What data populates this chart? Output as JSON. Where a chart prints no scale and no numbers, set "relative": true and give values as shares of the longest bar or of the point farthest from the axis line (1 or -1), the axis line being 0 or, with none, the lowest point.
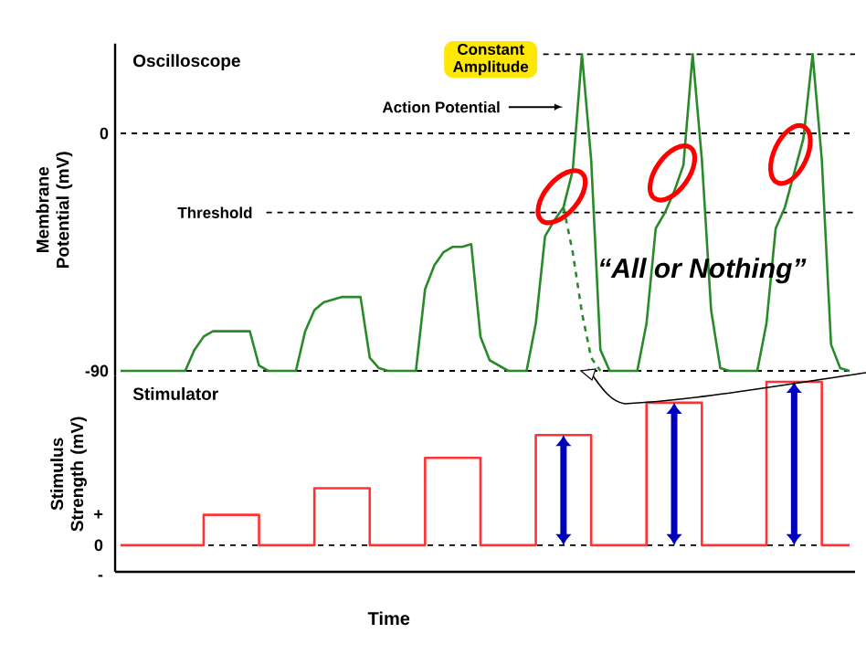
{
  "chart_data": [
    {
      "type": "line",
      "title": "Oscilloscope",
      "ylabel": "Membrane Potential (mV)",
      "ylim": [
        -92,
        34
      ],
      "yticks": [
        0,
        -90
      ],
      "tick_labels": "y",
      "categories": [
        null,
        null,
        null,
        null,
        null,
        null,
        null,
        null,
        null,
        null,
        null,
        null,
        null,
        null,
        null,
        null,
        null,
        null,
        null,
        null,
        null,
        null,
        null,
        null,
        null,
        null,
        null,
        null,
        null,
        null,
        null,
        null,
        null,
        null,
        null,
        null,
        null,
        null,
        null,
        null,
        null,
        null,
        null,
        null,
        null,
        null,
        null,
        null,
        null,
        null,
        null,
        null,
        null,
        null,
        null,
        null,
        null,
        null,
        null,
        null,
        null,
        null,
        null,
        null,
        null,
        null,
        null,
        null,
        null,
        null,
        null,
        null,
        null,
        null,
        null,
        null,
        null,
        null,
        null,
        null
      ],
      "series": [
        {
          "color": "#2a8a2a",
          "values": [
            -90,
            -90,
            -90,
            -90,
            -90,
            -90,
            -90,
            -90,
            -82,
            -77,
            -75,
            -75,
            -75,
            -75,
            -75,
            -88,
            -90,
            -90,
            -90,
            -90,
            -75,
            -67,
            -64,
            -63,
            -62,
            -62,
            -62,
            -85,
            -89,
            -90,
            -90,
            -90,
            -90,
            -59,
            -50,
            -45,
            -43,
            -43,
            -42,
            -77,
            -86,
            -88,
            -90,
            -90,
            -90,
            -72,
            -39,
            -33,
            -28,
            -14,
            30,
            -10,
            -82,
            -90,
            -90,
            -90,
            -90,
            -72,
            -36,
            -30,
            -22,
            -12,
            30,
            -10,
            -67,
            -89,
            -90,
            -90,
            -90,
            -90,
            -72,
            -36,
            -28,
            -15,
            -2,
            30,
            -10,
            -80,
            -89,
            -90
          ]
        },
        {
          "color": "#2a8a2a",
          "line_style": "dashed",
          "values": [
            null,
            null,
            null,
            null,
            null,
            null,
            null,
            null,
            null,
            null,
            null,
            null,
            null,
            null,
            null,
            null,
            null,
            null,
            null,
            null,
            null,
            null,
            null,
            null,
            null,
            null,
            null,
            null,
            null,
            null,
            null,
            null,
            null,
            null,
            null,
            null,
            null,
            null,
            null,
            null,
            null,
            null,
            null,
            null,
            null,
            null,
            null,
            null,
            -28,
            -45,
            -68,
            -85,
            -90,
            null,
            null,
            null,
            null,
            null,
            null,
            null,
            null,
            null,
            null,
            null,
            null,
            null,
            null,
            null,
            null,
            null,
            null,
            null,
            null,
            null,
            null,
            null,
            null,
            null,
            null,
            null
          ]
        }
      ],
      "ref_lines": [
        {
          "axis": "y",
          "value": 30,
          "label": "Constant Amplitude"
        },
        {
          "axis": "y",
          "value": 0
        },
        {
          "axis": "y",
          "value": -30,
          "label": "Threshold"
        },
        {
          "axis": "y",
          "value": -90
        }
      ],
      "annotations": [
        "Action Potential",
        "“All or Nothing”"
      ]
    },
    {
      "type": "step",
      "title": "Stimulator",
      "xlabel": "Time",
      "ylabel": "Stimulus Strength (mV)",
      "relative": true,
      "annotations": [
        "+",
        "0",
        "-"
      ],
      "categories": [
        null,
        null,
        null,
        null,
        null,
        null,
        null,
        null,
        null,
        null,
        null,
        null,
        null,
        null,
        null,
        null,
        null,
        null,
        null,
        null,
        null,
        null,
        null,
        null,
        null,
        null,
        null,
        null,
        null,
        null,
        null,
        null,
        null,
        null,
        null,
        null,
        null,
        null,
        null,
        null,
        null,
        null,
        null,
        null,
        null,
        null,
        null,
        null,
        null,
        null,
        null,
        null,
        null,
        null,
        null,
        null,
        null,
        null,
        null,
        null,
        null,
        null,
        null,
        null,
        null,
        null,
        null,
        null,
        null,
        null,
        null,
        null,
        null,
        null,
        null,
        null,
        null,
        null,
        null,
        null
      ],
      "series": [
        {
          "color": "#ff3333",
          "values": [
            0.14,
            0.14,
            0.14,
            0.14,
            0.14,
            0.14,
            0.14,
            0.14,
            0.14,
            0.3,
            0.3,
            0.3,
            0.3,
            0.3,
            0.3,
            0.14,
            0.14,
            0.14,
            0.14,
            0.14,
            0.14,
            0.44,
            0.44,
            0.44,
            0.44,
            0.44,
            0.44,
            0.14,
            0.14,
            0.14,
            0.14,
            0.14,
            0.14,
            0.6,
            0.6,
            0.6,
            0.6,
            0.6,
            0.6,
            0.14,
            0.14,
            0.14,
            0.14,
            0.14,
            0.14,
            0.72,
            0.72,
            0.72,
            0.72,
            0.72,
            0.72,
            0.14,
            0.14,
            0.14,
            0.14,
            0.14,
            0.14,
            0.89,
            0.89,
            0.89,
            0.89,
            0.89,
            0.89,
            0.14,
            0.14,
            0.14,
            0.14,
            0.14,
            0.14,
            0.14,
            1,
            1,
            1,
            1,
            1,
            1,
            0.14,
            0.14,
            0.14,
            0.14
          ]
        }
      ],
      "ref_lines": [
        {
          "axis": "y",
          "value": 0.14
        }
      ]
    }
  ]
}
